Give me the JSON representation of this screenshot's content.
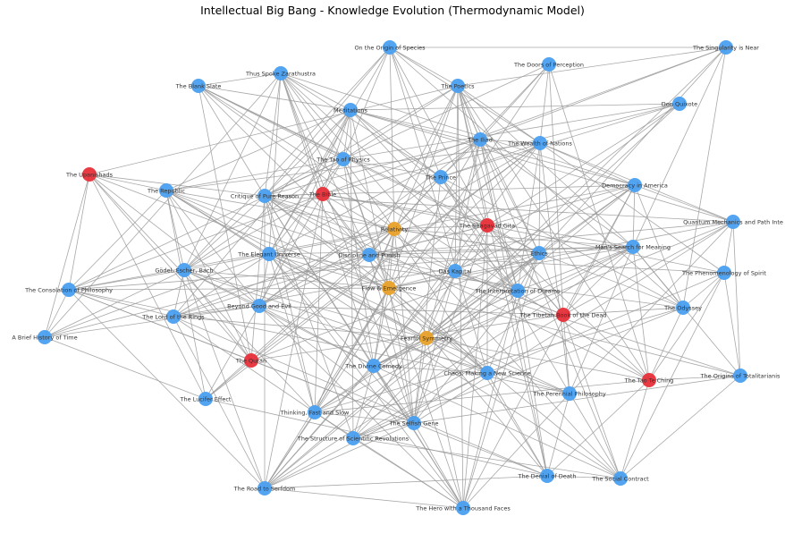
{
  "title": "Intellectual Big Bang - Knowledge Evolution (Thermodynamic Model)",
  "colors": {
    "blue": "#4a9ff0",
    "red": "#e8303a",
    "orange": "#eaa22a",
    "edge": "#999999",
    "label": "#333333"
  },
  "nodes": [
    {
      "id": "origin_species",
      "label": "On the Origin of Species",
      "color": "blue"
    },
    {
      "id": "singularity",
      "label": "The Singularity is Near",
      "color": "blue"
    },
    {
      "id": "zarathustra",
      "label": "Thus Spoke Zarathustra",
      "color": "blue"
    },
    {
      "id": "doors_perception",
      "label": "The Doors of Perception",
      "color": "blue"
    },
    {
      "id": "blank_slate",
      "label": "The Blank Slate",
      "color": "blue"
    },
    {
      "id": "poetics",
      "label": "The Poetics",
      "color": "blue"
    },
    {
      "id": "don_quixote",
      "label": "Don Quixote",
      "color": "blue"
    },
    {
      "id": "meditations",
      "label": "Meditations",
      "color": "blue"
    },
    {
      "id": "iliad",
      "label": "The Iliad",
      "color": "blue"
    },
    {
      "id": "wealth_nations",
      "label": "The Wealth of Nations",
      "color": "blue"
    },
    {
      "id": "tao_physics",
      "label": "The Tao of Physics",
      "color": "blue"
    },
    {
      "id": "upanishads",
      "label": "The Upanishads",
      "color": "red"
    },
    {
      "id": "the_prince",
      "label": "The Prince",
      "color": "blue"
    },
    {
      "id": "republic",
      "label": "The Republic",
      "color": "blue"
    },
    {
      "id": "critique",
      "label": "Critique of Pure Reason",
      "color": "blue"
    },
    {
      "id": "bible",
      "label": "The Bible",
      "color": "red"
    },
    {
      "id": "democracy_america",
      "label": "Democracy in America",
      "color": "blue"
    },
    {
      "id": "relativity",
      "label": "Relativity",
      "color": "orange"
    },
    {
      "id": "bhagavad_gita",
      "label": "The Bhagavad Gita",
      "color": "red"
    },
    {
      "id": "quantum",
      "label": "Quantum Mechanics and Path Inte",
      "color": "blue"
    },
    {
      "id": "mans_search",
      "label": "Man's Search for Meaning",
      "color": "blue"
    },
    {
      "id": "elegant_universe",
      "label": "The Elegant Universe",
      "color": "blue"
    },
    {
      "id": "discipline_punish",
      "label": "Discipline and Punish",
      "color": "blue"
    },
    {
      "id": "ethics",
      "label": "Ethics",
      "color": "blue"
    },
    {
      "id": "godel",
      "label": "Gödel, Escher, Bach",
      "color": "blue"
    },
    {
      "id": "das_kapital",
      "label": "Das Kapital",
      "color": "blue"
    },
    {
      "id": "phenomenology",
      "label": "The Phenomenology of Spirit",
      "color": "blue"
    },
    {
      "id": "consolation",
      "label": "The Consolation of Philosophy",
      "color": "blue"
    },
    {
      "id": "flow_emergence",
      "label": "Flow & Emergence",
      "color": "orange"
    },
    {
      "id": "interpretation_dreams",
      "label": "The Interpretation of Dreams",
      "color": "blue"
    },
    {
      "id": "beyond_good_evil",
      "label": "Beyond Good and Evil",
      "color": "blue"
    },
    {
      "id": "odyssey",
      "label": "The Odyssey",
      "color": "blue"
    },
    {
      "id": "lord_rings",
      "label": "The Lord of the Rings",
      "color": "blue"
    },
    {
      "id": "tibetan_dead",
      "label": "The Tibetan Book of the Dead",
      "color": "red"
    },
    {
      "id": "brief_history",
      "label": "A Brief History of Time",
      "color": "blue"
    },
    {
      "id": "fearful_symmetry",
      "label": "Fearful Symmetry",
      "color": "orange"
    },
    {
      "id": "quran",
      "label": "The Quran",
      "color": "red"
    },
    {
      "id": "divine_comedy",
      "label": "The Divine Comedy",
      "color": "blue"
    },
    {
      "id": "chaos",
      "label": "Chaos: Making a New Science",
      "color": "blue"
    },
    {
      "id": "tao_te_ching",
      "label": "The Tao Te Ching",
      "color": "red"
    },
    {
      "id": "origins_totalitarianism",
      "label": "The Origins of Totalitarianis",
      "color": "blue"
    },
    {
      "id": "lucifer_effect",
      "label": "The Lucifer Effect",
      "color": "blue"
    },
    {
      "id": "perennial",
      "label": "The Perennial Philosophy",
      "color": "blue"
    },
    {
      "id": "thinking_fast",
      "label": "Thinking, Fast and Slow",
      "color": "blue"
    },
    {
      "id": "selfish_gene",
      "label": "The Selfish Gene",
      "color": "blue"
    },
    {
      "id": "structure_revolutions",
      "label": "The Structure of Scientific Revolutions",
      "color": "blue"
    },
    {
      "id": "denial_death",
      "label": "The Denial of Death",
      "color": "blue"
    },
    {
      "id": "social_contract",
      "label": "The Social Contract",
      "color": "blue"
    },
    {
      "id": "road_serfdom",
      "label": "The Road to Serfdom",
      "color": "blue"
    },
    {
      "id": "hero_faces",
      "label": "The Hero with a Thousand Faces",
      "color": "blue"
    }
  ]
}
